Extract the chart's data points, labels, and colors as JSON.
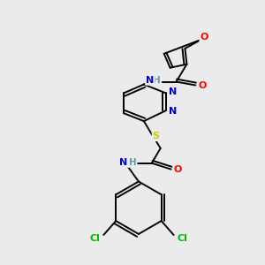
{
  "bg_color": "#ebebeb",
  "figsize": [
    3.0,
    3.0
  ],
  "dpi": 100,
  "atom_colors": {
    "O": "#ff0000",
    "N": "#0000cc",
    "S": "#cccc00",
    "Cl": "#00bb00",
    "H": "#6699aa",
    "C": "#000000"
  },
  "lw": 1.4,
  "lw_double_inner": 1.2
}
